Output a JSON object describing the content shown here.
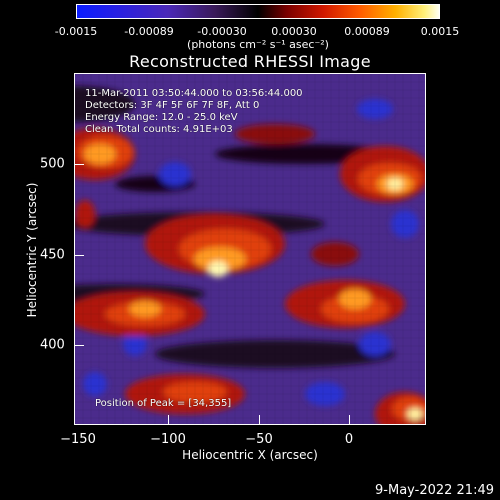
{
  "colorbar": {
    "ticks": [
      "-0.0015",
      "-0.00089",
      "-0.00030",
      "0.00030",
      "0.00089",
      "0.0015"
    ],
    "units": "(photons cm⁻² s⁻¹ asec⁻²)"
  },
  "title": "Reconstructed RHESSI Image",
  "annotations": {
    "time_range": "11-Mar-2011 03:50:44.000 to 03:56:44.000",
    "detectors": "Detectors: 3F 4F 5F 6F 7F 8F, Att 0",
    "energy": "Energy Range: 12.0 - 25.0 keV",
    "clean": "Clean    Total counts: 4.91E+03",
    "peak": "Position of Peak = [34,355]"
  },
  "axes": {
    "xlabel": "Heliocentric X (arcsec)",
    "ylabel": "Heliocentric Y (arcsec)",
    "xticks": [
      "−150",
      "−100",
      "−50",
      "0"
    ],
    "yticks": [
      "500",
      "450",
      "400"
    ]
  },
  "datestamp": "9-May-2022 21:49",
  "colors": {
    "low": "#0a1cff",
    "mid": "#000000",
    "high": "#ffffe0",
    "background": "#000000"
  }
}
